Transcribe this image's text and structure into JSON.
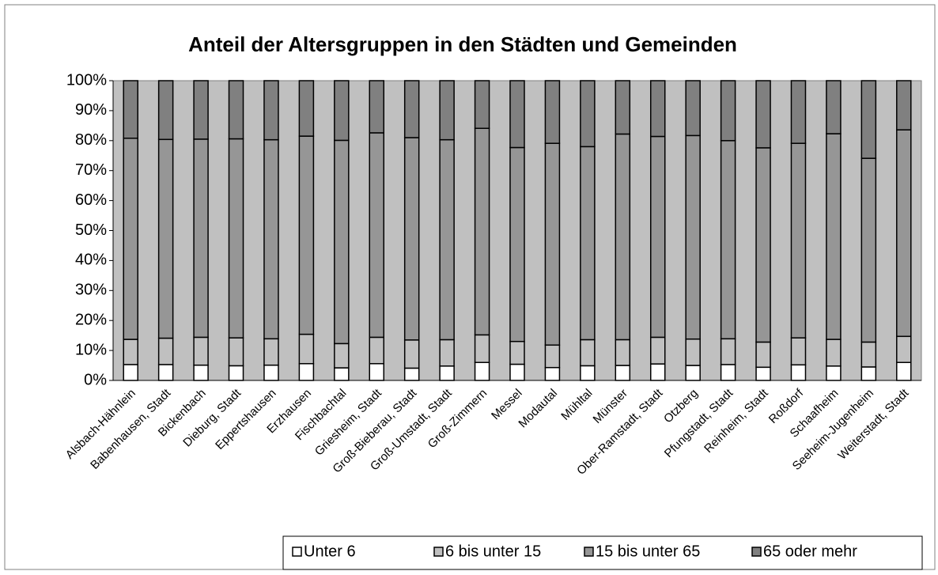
{
  "chart_data": {
    "type": "bar",
    "stacked": true,
    "title": "Anteil der Altersgruppen in den Städten und Gemeinden",
    "categories": [
      "Alsbach-Hähnlein",
      "Babenhausen, Stadt",
      "Bickenbach",
      "Dieburg, Stadt",
      "Eppertshausen",
      "Erzhausen",
      "Fischbachtal",
      "Griesheim, Stadt",
      "Groß-Bieberau, Stadt",
      "Groß-Umstadt, Stadt",
      "Groß-Zimmern",
      "Messel",
      "Modautal",
      "Mühltal",
      "Münster",
      "Ober-Ramstadt, Stadt",
      "Otzberg",
      "Pfungstadt, Stadt",
      "Reinheim, Stadt",
      "Roßdorf",
      "Schaafheim",
      "Seeheim-Jugenheim",
      "Weiterstadt, Stadt"
    ],
    "series": [
      {
        "name": "Unter 6",
        "color": "#ffffff",
        "values": [
          5.3,
          5.3,
          5.1,
          4.9,
          5.1,
          5.6,
          4.2,
          5.6,
          4.1,
          4.8,
          6.0,
          5.4,
          4.3,
          4.9,
          5.0,
          5.5,
          5.0,
          5.3,
          4.4,
          5.2,
          4.8,
          4.5,
          6.0
        ]
      },
      {
        "name": "6 bis unter 15",
        "color": "#c0c0c0",
        "values": [
          8.4,
          8.8,
          9.3,
          9.3,
          8.8,
          9.8,
          8.1,
          8.8,
          9.4,
          8.8,
          9.2,
          7.6,
          7.5,
          8.7,
          8.6,
          8.9,
          8.8,
          8.6,
          8.4,
          9.0,
          8.9,
          8.3,
          8.7
        ]
      },
      {
        "name": "15 bis unter 65",
        "color": "#969696",
        "values": [
          67.1,
          66.3,
          66.1,
          66.4,
          66.4,
          66.1,
          67.8,
          68.2,
          67.5,
          66.7,
          68.9,
          64.7,
          67.3,
          64.4,
          68.6,
          67.0,
          67.9,
          66.1,
          64.8,
          64.9,
          68.6,
          61.3,
          68.9
        ]
      },
      {
        "name": "65 oder mehr",
        "color": "#808080",
        "values": [
          19.2,
          19.6,
          19.5,
          19.4,
          19.7,
          18.5,
          19.9,
          17.4,
          19.0,
          19.7,
          15.9,
          22.3,
          20.9,
          22.0,
          17.8,
          18.6,
          18.3,
          20.0,
          22.4,
          20.9,
          17.7,
          25.9,
          16.4
        ]
      }
    ],
    "ylim": [
      0,
      100
    ],
    "yticks": [
      {
        "value": 0,
        "label": "0%"
      },
      {
        "value": 10,
        "label": "10%"
      },
      {
        "value": 20,
        "label": "20%"
      },
      {
        "value": 30,
        "label": "30%"
      },
      {
        "value": 40,
        "label": "40%"
      },
      {
        "value": 50,
        "label": "50%"
      },
      {
        "value": 60,
        "label": "60%"
      },
      {
        "value": 70,
        "label": "70%"
      },
      {
        "value": 80,
        "label": "80%"
      },
      {
        "value": 90,
        "label": "90%"
      },
      {
        "value": 100,
        "label": "100%"
      }
    ],
    "plot_background": "#c0c0c0",
    "legend": "bottom"
  }
}
